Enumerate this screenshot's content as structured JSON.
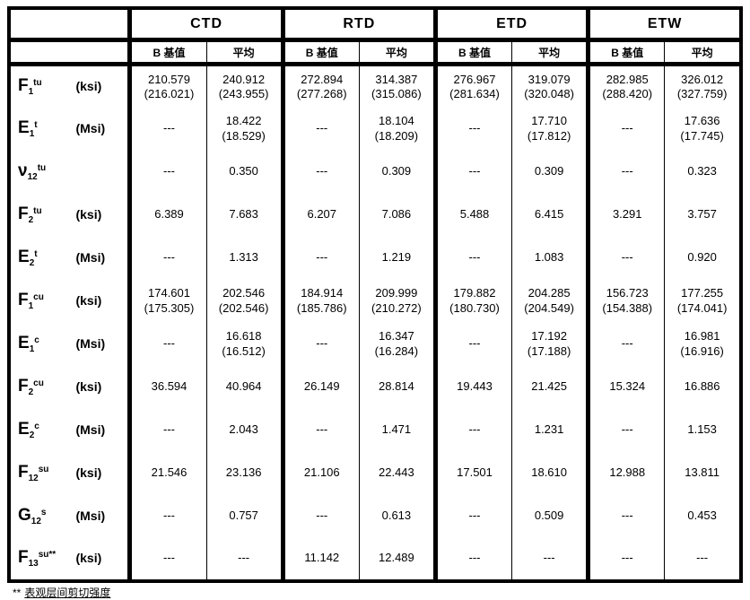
{
  "table": {
    "conditions": [
      "CTD",
      "RTD",
      "ETD",
      "ETW"
    ],
    "stat_headers": [
      "B 基值",
      "平均",
      "B 基值",
      "平均",
      "B 基值",
      "平均",
      "B 基值",
      "平均"
    ],
    "rows": [
      {
        "sym": "F",
        "sub": "1",
        "sup": "tu",
        "unit": "(ksi)",
        "cells": [
          "210.579\n(216.021)",
          "240.912\n(243.955)",
          "272.894\n(277.268)",
          "314.387\n(315.086)",
          "276.967\n(281.634)",
          "319.079\n(320.048)",
          "282.985\n(288.420)",
          "326.012\n(327.759)"
        ]
      },
      {
        "sym": "E",
        "sub": "1",
        "sup": "t",
        "unit": "(Msi)",
        "cells": [
          "---",
          "18.422\n(18.529)",
          "---",
          "18.104\n(18.209)",
          "---",
          "17.710\n(17.812)",
          "---",
          "17.636\n(17.745)"
        ]
      },
      {
        "sym": "ν",
        "sub": "12",
        "sup": "tu",
        "unit": "",
        "cells": [
          "---",
          "0.350",
          "---",
          "0.309",
          "---",
          "0.309",
          "---",
          "0.323"
        ]
      },
      {
        "sym": "F",
        "sub": "2",
        "sup": "tu",
        "unit": "(ksi)",
        "cells": [
          "6.389",
          "7.683",
          "6.207",
          "7.086",
          "5.488",
          "6.415",
          "3.291",
          "3.757"
        ]
      },
      {
        "sym": "E",
        "sub": "2",
        "sup": "t",
        "unit": "(Msi)",
        "cells": [
          "---",
          "1.313",
          "---",
          "1.219",
          "---",
          "1.083",
          "---",
          "0.920"
        ]
      },
      {
        "sym": "F",
        "sub": "1",
        "sup": "cu",
        "unit": "(ksi)",
        "cells": [
          "174.601\n(175.305)",
          "202.546\n(202.546)",
          "184.914\n(185.786)",
          "209.999\n(210.272)",
          "179.882\n(180.730)",
          "204.285\n(204.549)",
          "156.723\n(154.388)",
          "177.255\n(174.041)"
        ]
      },
      {
        "sym": "E",
        "sub": "1",
        "sup": "c",
        "unit": "(Msi)",
        "cells": [
          "---",
          "16.618\n(16.512)",
          "---",
          "16.347\n(16.284)",
          "---",
          "17.192\n(17.188)",
          "---",
          "16.981\n(16.916)"
        ]
      },
      {
        "sym": "F",
        "sub": "2",
        "sup": "cu",
        "unit": "(ksi)",
        "cells": [
          "36.594",
          "40.964",
          "26.149",
          "28.814",
          "19.443",
          "21.425",
          "15.324",
          "16.886"
        ]
      },
      {
        "sym": "E",
        "sub": "2",
        "sup": "c",
        "unit": "(Msi)",
        "cells": [
          "---",
          "2.043",
          "---",
          "1.471",
          "---",
          "1.231",
          "---",
          "1.153"
        ]
      },
      {
        "sym": "F",
        "sub": "12",
        "sup": "su",
        "unit": "(ksi)",
        "cells": [
          "21.546",
          "23.136",
          "21.106",
          "22.443",
          "17.501",
          "18.610",
          "12.988",
          "13.811"
        ]
      },
      {
        "sym": "G",
        "sub": "12",
        "sup": "s",
        "unit": "(Msi)",
        "cells": [
          "---",
          "0.757",
          "---",
          "0.613",
          "---",
          "0.509",
          "---",
          "0.453"
        ]
      },
      {
        "sym": "F",
        "sub": "13",
        "sup": "su**",
        "unit": "(ksi)",
        "cells": [
          "---",
          "---",
          "11.142",
          "12.489",
          "---",
          "---",
          "---",
          "---"
        ]
      }
    ],
    "footnote": {
      "marker": "**",
      "text": "表观层间剪切强度"
    }
  }
}
